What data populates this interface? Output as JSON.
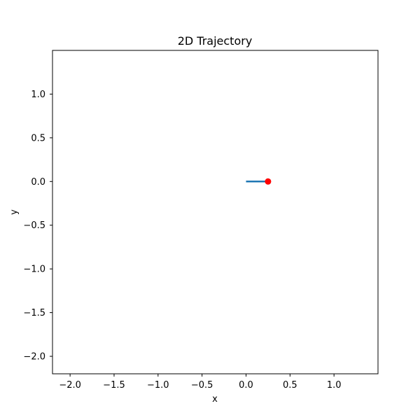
{
  "chart_data": {
    "type": "line",
    "title": "2D Trajectory",
    "xlabel": "x",
    "ylabel": "y",
    "xlim": [
      -2.2,
      1.5
    ],
    "ylim": [
      -2.2,
      1.5
    ],
    "xticks": [
      -2.0,
      -1.5,
      -1.0,
      -0.5,
      0.0,
      0.5,
      1.0
    ],
    "yticks": [
      1.0,
      0.5,
      0.0,
      -0.5,
      -1.0,
      -1.5,
      -2.0
    ],
    "xtick_labels": [
      "−2.0",
      "−1.5",
      "−1.0",
      "−0.5",
      "0.0",
      "0.5",
      "1.0"
    ],
    "ytick_labels": [
      "1.0",
      "0.5",
      "0.0",
      "−0.5",
      "−1.0",
      "−1.5",
      "−2.0"
    ],
    "grid": false,
    "series": [
      {
        "type": "line",
        "color": "#1f77b4",
        "x": [
          0.0,
          0.25
        ],
        "y": [
          0.0,
          0.0
        ]
      },
      {
        "type": "marker",
        "color": "#ff0000",
        "x": [
          0.25
        ],
        "y": [
          0.0
        ]
      }
    ]
  }
}
